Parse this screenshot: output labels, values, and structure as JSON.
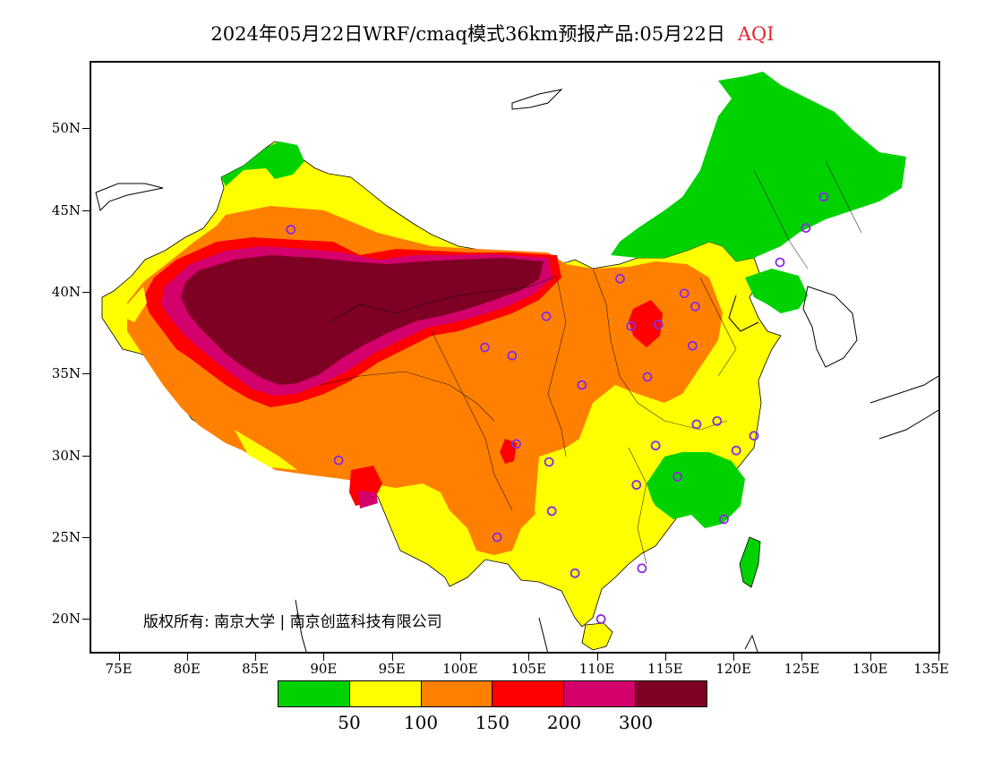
{
  "title": {
    "main": "2024年05月22日WRF/cmaq模式36km预报产品:05月22日",
    "variable": "AQI",
    "variable_color": "#e0282e"
  },
  "axes": {
    "lat_labels": [
      "50N",
      "45N",
      "40N",
      "35N",
      "30N",
      "25N",
      "20N"
    ],
    "lat_values": [
      50,
      45,
      40,
      35,
      30,
      25,
      20
    ],
    "lon_labels": [
      "75E",
      "80E",
      "85E",
      "90E",
      "95E",
      "100E",
      "105E",
      "110E",
      "115E",
      "120E",
      "125E",
      "130E",
      "135E"
    ],
    "lon_values": [
      75,
      80,
      85,
      90,
      95,
      100,
      105,
      110,
      115,
      120,
      125,
      130,
      135
    ],
    "lon_range": [
      73,
      135
    ],
    "lat_range": [
      18,
      54
    ]
  },
  "copyright": "版权所有: 南京大学 | 南京创蓝科技有限公司",
  "colorbar": {
    "colors": [
      "#00d200",
      "#ffff00",
      "#ff8000",
      "#ff0000",
      "#d4006c",
      "#7e0023"
    ],
    "labels": [
      "50",
      "100",
      "150",
      "200",
      "300"
    ]
  },
  "stations": [
    {
      "lon": 87.6,
      "lat": 43.8
    },
    {
      "lon": 91.1,
      "lat": 29.7
    },
    {
      "lon": 101.8,
      "lat": 36.6
    },
    {
      "lon": 103.8,
      "lat": 36.1
    },
    {
      "lon": 106.3,
      "lat": 38.5
    },
    {
      "lon": 104.1,
      "lat": 30.7
    },
    {
      "lon": 106.5,
      "lat": 29.6
    },
    {
      "lon": 106.7,
      "lat": 26.6
    },
    {
      "lon": 102.7,
      "lat": 25.0
    },
    {
      "lon": 108.4,
      "lat": 22.8
    },
    {
      "lon": 110.3,
      "lat": 20.0
    },
    {
      "lon": 113.3,
      "lat": 23.1
    },
    {
      "lon": 112.9,
      "lat": 28.2
    },
    {
      "lon": 114.3,
      "lat": 30.6
    },
    {
      "lon": 115.9,
      "lat": 28.7
    },
    {
      "lon": 119.3,
      "lat": 26.1
    },
    {
      "lon": 120.2,
      "lat": 30.3
    },
    {
      "lon": 121.5,
      "lat": 31.2
    },
    {
      "lon": 118.8,
      "lat": 32.1
    },
    {
      "lon": 117.3,
      "lat": 31.9
    },
    {
      "lon": 113.7,
      "lat": 34.8
    },
    {
      "lon": 108.9,
      "lat": 34.3
    },
    {
      "lon": 112.5,
      "lat": 37.9
    },
    {
      "lon": 114.5,
      "lat": 38.0
    },
    {
      "lon": 117.0,
      "lat": 36.7
    },
    {
      "lon": 117.2,
      "lat": 39.1
    },
    {
      "lon": 116.4,
      "lat": 39.9
    },
    {
      "lon": 111.7,
      "lat": 40.8
    },
    {
      "lon": 123.4,
      "lat": 41.8
    },
    {
      "lon": 125.3,
      "lat": 43.9
    },
    {
      "lon": 126.6,
      "lat": 45.8
    }
  ],
  "station_color": "#8a2be2"
}
